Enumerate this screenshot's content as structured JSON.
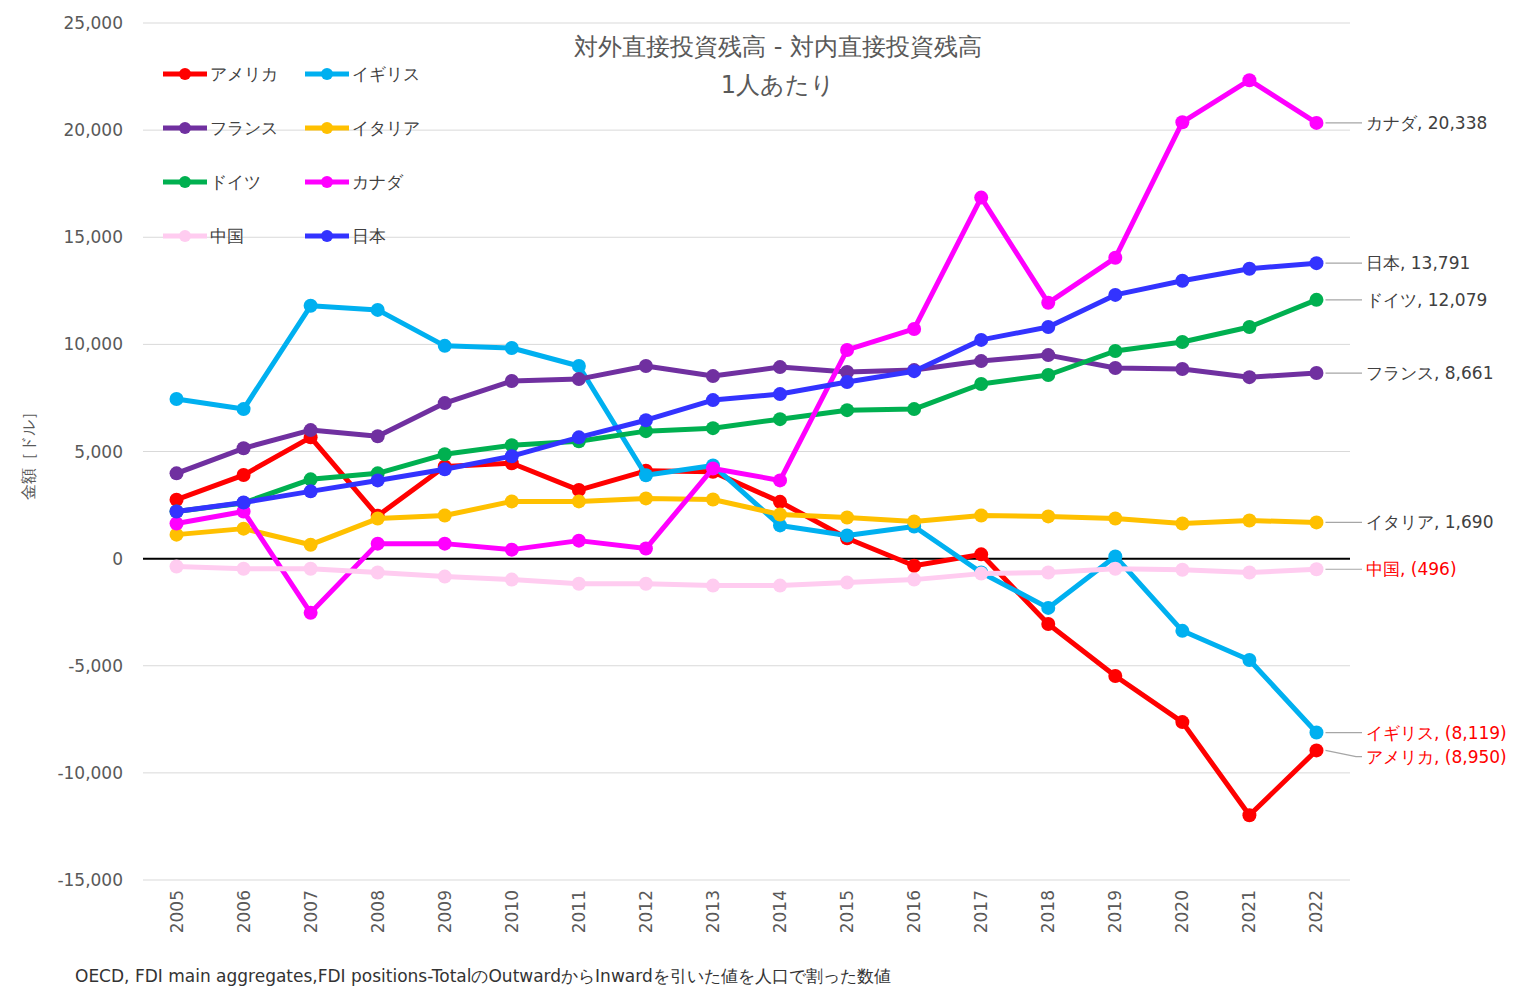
{
  "chart_data": {
    "type": "line",
    "title": "対外直接投資残高 - 対内直接投資残高",
    "subtitle": "1人あたり",
    "y_label": "金額［ドル］",
    "source": "OECD, FDI main aggregates,FDI positions-TotalのOutwardからInwardを引いた値を人口で割った数値",
    "categories": [
      "2005",
      "2006",
      "2007",
      "2008",
      "2009",
      "2010",
      "2011",
      "2012",
      "2013",
      "2014",
      "2015",
      "2016",
      "2017",
      "2018",
      "2019",
      "2020",
      "2021",
      "2022"
    ],
    "ylim": [
      -15000,
      25000
    ],
    "yticks": [
      {
        "value": -15000,
        "label": "-15,000"
      },
      {
        "value": -10000,
        "label": "-10,000"
      },
      {
        "value": -5000,
        "label": "-5,000"
      },
      0,
      {
        "value": 5000,
        "label": "5,000"
      },
      {
        "value": 10000,
        "label": "10,000"
      },
      {
        "value": 15000,
        "label": "15,000"
      },
      {
        "value": 20000,
        "label": "20,000"
      },
      {
        "value": 25000,
        "label": "25,000"
      }
    ],
    "grid": true,
    "legend": "top-left",
    "marker": "circle",
    "line_style": "solid",
    "series": [
      {
        "name": "アメリカ",
        "color": "#ff0000",
        "values": [
          2750,
          3900,
          5660,
          2000,
          4300,
          4450,
          3200,
          4100,
          4050,
          2650,
          950,
          -330,
          200,
          -3050,
          -5480,
          -7630,
          -11980,
          -8950
        ],
        "value_labels": [
          null,
          null,
          null,
          null,
          null,
          null,
          null,
          null,
          null,
          null,
          null,
          null,
          null,
          null,
          null,
          null,
          null,
          "アメリカ, (8,950)"
        ]
      },
      {
        "name": "イギリス",
        "color": "#00b0f0",
        "values": [
          7450,
          6980,
          11800,
          11610,
          9930,
          9830,
          8990,
          3890,
          4350,
          1550,
          1080,
          1500,
          -650,
          -2300,
          100,
          -3370,
          -4730,
          -8119
        ],
        "value_labels": [
          null,
          null,
          null,
          null,
          null,
          null,
          null,
          null,
          null,
          null,
          null,
          null,
          null,
          null,
          null,
          null,
          null,
          "イギリス, (8,119)"
        ]
      },
      {
        "name": "フランス",
        "color": "#7030a0",
        "values": [
          3980,
          5150,
          6000,
          5710,
          7260,
          8290,
          8380,
          8990,
          8520,
          8940,
          8710,
          8800,
          9220,
          9500,
          8900,
          8850,
          8470,
          8661
        ],
        "value_labels": [
          null,
          null,
          null,
          null,
          null,
          null,
          null,
          null,
          null,
          null,
          null,
          null,
          null,
          null,
          null,
          null,
          null,
          "フランス, 8,661"
        ]
      },
      {
        "name": "イタリア",
        "color": "#ffc000",
        "values": [
          1120,
          1400,
          650,
          1870,
          2010,
          2670,
          2670,
          2810,
          2760,
          2060,
          1920,
          1730,
          2010,
          1970,
          1870,
          1640,
          1780,
          1690
        ],
        "value_labels": [
          null,
          null,
          null,
          null,
          null,
          null,
          null,
          null,
          null,
          null,
          null,
          null,
          null,
          null,
          null,
          null,
          null,
          "イタリア, 1,690"
        ]
      },
      {
        "name": "ドイツ",
        "color": "#00b050",
        "values": [
          2200,
          2600,
          3700,
          3980,
          4870,
          5290,
          5480,
          5950,
          6090,
          6510,
          6930,
          6980,
          8150,
          8570,
          9690,
          10110,
          10810,
          12079
        ],
        "value_labels": [
          null,
          null,
          null,
          null,
          null,
          null,
          null,
          null,
          null,
          null,
          null,
          null,
          null,
          null,
          null,
          null,
          null,
          "ドイツ, 12,079"
        ]
      },
      {
        "name": "カナダ",
        "color": "#ff00ff",
        "values": [
          1640,
          2200,
          -2530,
          700,
          700,
          420,
          840,
          470,
          4210,
          3650,
          9740,
          10720,
          16850,
          11940,
          14040,
          20370,
          22330,
          20338
        ],
        "value_labels": [
          null,
          null,
          null,
          null,
          null,
          null,
          null,
          null,
          null,
          null,
          null,
          null,
          null,
          null,
          null,
          null,
          null,
          "カナダ, 20,338"
        ]
      },
      {
        "name": "中国",
        "color": "#ffccf0",
        "values": [
          -370,
          -470,
          -470,
          -650,
          -840,
          -980,
          -1170,
          -1170,
          -1260,
          -1260,
          -1120,
          -980,
          -700,
          -650,
          -470,
          -520,
          -650,
          -496
        ],
        "value_labels": [
          null,
          null,
          null,
          null,
          null,
          null,
          null,
          null,
          null,
          null,
          null,
          null,
          null,
          null,
          null,
          null,
          null,
          "中国, (496)"
        ]
      },
      {
        "name": "日本",
        "color": "#3333ff",
        "values": [
          2200,
          2620,
          3140,
          3650,
          4170,
          4780,
          5660,
          6460,
          7400,
          7680,
          8240,
          8750,
          10210,
          10810,
          12310,
          12970,
          13530,
          13791
        ],
        "value_labels": [
          null,
          null,
          null,
          null,
          null,
          null,
          null,
          null,
          null,
          null,
          null,
          null,
          null,
          null,
          null,
          null,
          null,
          "日本, 13,791"
        ]
      }
    ]
  }
}
